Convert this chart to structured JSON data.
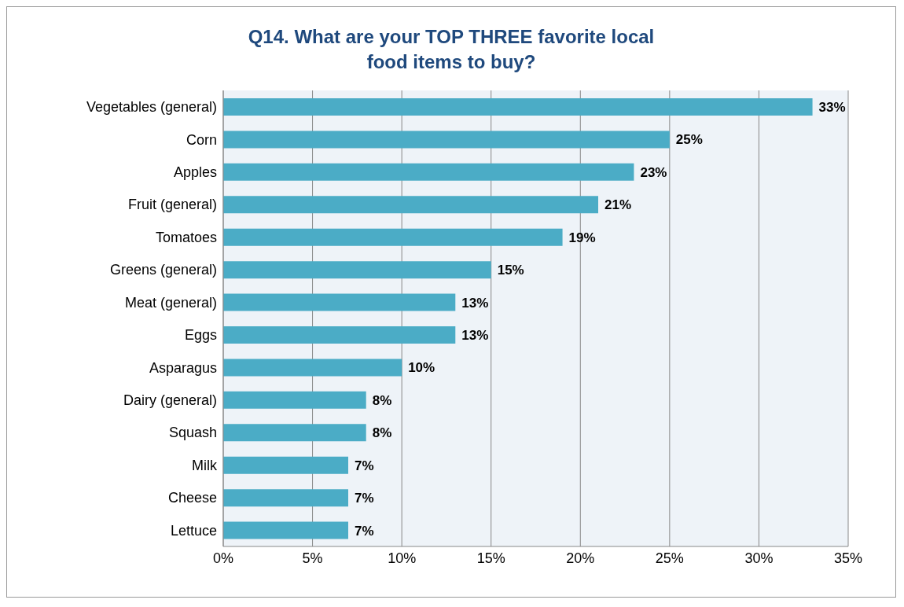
{
  "chart_data": {
    "type": "bar",
    "orientation": "horizontal",
    "title": "Q14. What are your TOP THREE favorite local food items to buy?",
    "categories": [
      "Vegetables (general)",
      "Corn",
      "Apples",
      "Fruit (general)",
      "Tomatoes",
      "Greens  (general)",
      "Meat (general)",
      "Eggs",
      "Asparagus",
      "Dairy (general)",
      "Squash",
      "Milk",
      "Cheese",
      "Lettuce"
    ],
    "values": [
      33,
      25,
      23,
      21,
      19,
      15,
      13,
      13,
      10,
      8,
      8,
      7,
      7,
      7
    ],
    "value_labels": [
      "33%",
      "25%",
      "23%",
      "21%",
      "19%",
      "15%",
      "13%",
      "13%",
      "10%",
      "8%",
      "8%",
      "7%",
      "7%",
      "7%"
    ],
    "color": "#4bacc6",
    "xlim": [
      0,
      35
    ],
    "xticks": [
      {
        "value": 0,
        "label": "0%"
      },
      {
        "value": 5,
        "label": "5%"
      },
      {
        "value": 10,
        "label": "10%"
      },
      {
        "value": 15,
        "label": "15%"
      },
      {
        "value": 20,
        "label": "20%"
      },
      {
        "value": 25,
        "label": "25%"
      },
      {
        "value": 30,
        "label": "30%"
      },
      {
        "value": 35,
        "label": "35%"
      }
    ],
    "grid": "x"
  }
}
